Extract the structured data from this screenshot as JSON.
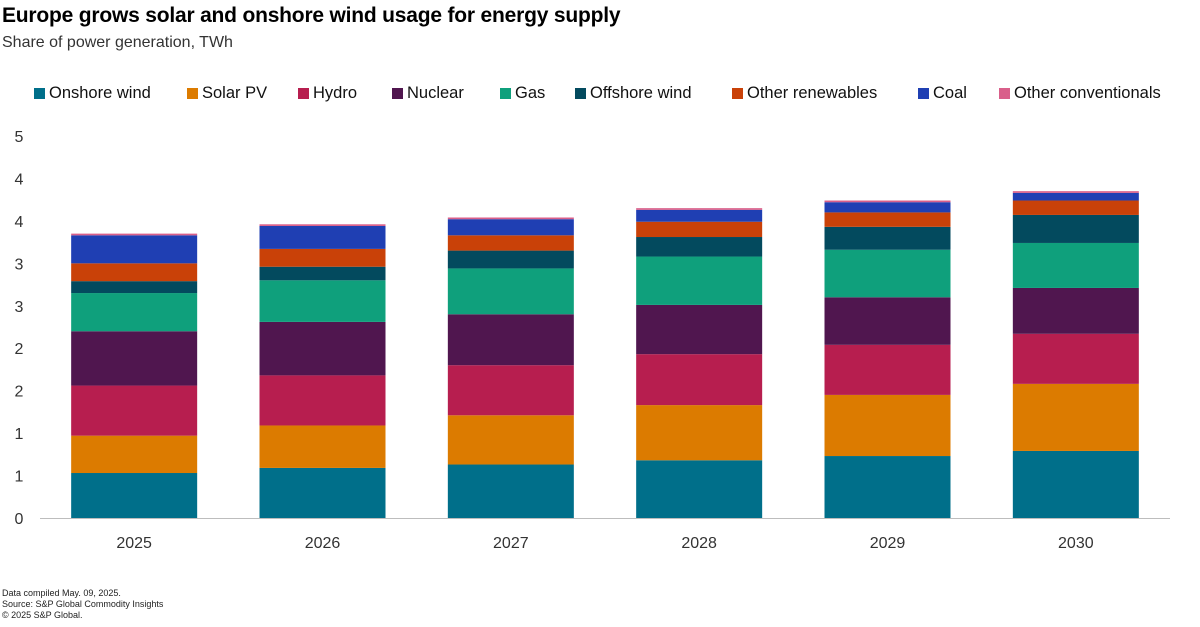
{
  "title": "Europe grows solar and onshore wind usage for energy supply",
  "subtitle": "Share of power generation, TWh",
  "chart_data": {
    "type": "bar",
    "stacked": true,
    "categories": [
      "2025",
      "2026",
      "2027",
      "2028",
      "2029",
      "2030"
    ],
    "y_tick_labels": [
      "0",
      "1",
      "1",
      "2",
      "2",
      "3",
      "3",
      "4",
      "4",
      "5"
    ],
    "ylim": [
      0,
      4.5
    ],
    "grid": false,
    "legend_position": "top",
    "series": [
      {
        "name": "Onshore wind",
        "color": "#006f8a",
        "values": [
          0.53,
          0.59,
          0.63,
          0.68,
          0.73,
          0.79
        ]
      },
      {
        "name": "Solar PV",
        "color": "#dc7b00",
        "values": [
          0.44,
          0.5,
          0.58,
          0.65,
          0.72,
          0.79
        ]
      },
      {
        "name": "Hydro",
        "color": "#b71e4f",
        "values": [
          0.59,
          0.59,
          0.59,
          0.6,
          0.59,
          0.59
        ]
      },
      {
        "name": "Nuclear",
        "color": "#50164f",
        "values": [
          0.64,
          0.63,
          0.6,
          0.58,
          0.56,
          0.54
        ]
      },
      {
        "name": "Gas",
        "color": "#0fa07c",
        "values": [
          0.45,
          0.49,
          0.54,
          0.57,
          0.56,
          0.53
        ]
      },
      {
        "name": "Offshore wind",
        "color": "#034a5e",
        "values": [
          0.14,
          0.16,
          0.21,
          0.23,
          0.27,
          0.33
        ]
      },
      {
        "name": "Other renewables",
        "color": "#c94108",
        "values": [
          0.21,
          0.21,
          0.18,
          0.18,
          0.17,
          0.17
        ]
      },
      {
        "name": "Coal",
        "color": "#1f3fb3",
        "values": [
          0.33,
          0.27,
          0.19,
          0.14,
          0.12,
          0.09
        ]
      },
      {
        "name": "Other conventionals",
        "color": "#d95f8a",
        "values": [
          0.02,
          0.02,
          0.02,
          0.02,
          0.02,
          0.02
        ]
      }
    ]
  },
  "footer": {
    "compiled": "Data compiled May. 09, 2025.",
    "source": "Source: S&P Global Commodity Insights",
    "copyright": "© 2025 S&P Global."
  }
}
